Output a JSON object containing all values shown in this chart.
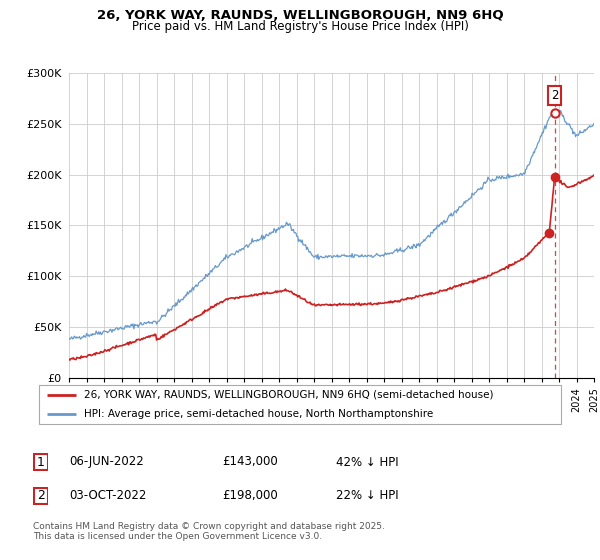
{
  "title": "26, YORK WAY, RAUNDS, WELLINGBOROUGH, NN9 6HQ",
  "subtitle": "Price paid vs. HM Land Registry's House Price Index (HPI)",
  "background_color": "#ffffff",
  "grid_color": "#cccccc",
  "hpi_color": "#6699cc",
  "price_color": "#cc2222",
  "transaction1": {
    "date": "06-JUN-2022",
    "price": 143000,
    "label": "1",
    "hpi_diff": "42% ↓ HPI",
    "x_year": 2022.44
  },
  "transaction2": {
    "date": "03-OCT-2022",
    "price": 198000,
    "label": "2",
    "hpi_diff": "22% ↓ HPI",
    "x_year": 2022.75
  },
  "legend_line1": "26, YORK WAY, RAUNDS, WELLINGBOROUGH, NN9 6HQ (semi-detached house)",
  "legend_line2": "HPI: Average price, semi-detached house, North Northamptonshire",
  "copyright": "Contains HM Land Registry data © Crown copyright and database right 2025.\nThis data is licensed under the Open Government Licence v3.0.",
  "xmin": 1995,
  "xmax": 2025,
  "ymin": 0,
  "ymax": 300000,
  "yticks": [
    0,
    50000,
    100000,
    150000,
    200000,
    250000,
    300000
  ],
  "ylabels": [
    "£0",
    "£50K",
    "£100K",
    "£150K",
    "£200K",
    "£250K",
    "£300K"
  ]
}
